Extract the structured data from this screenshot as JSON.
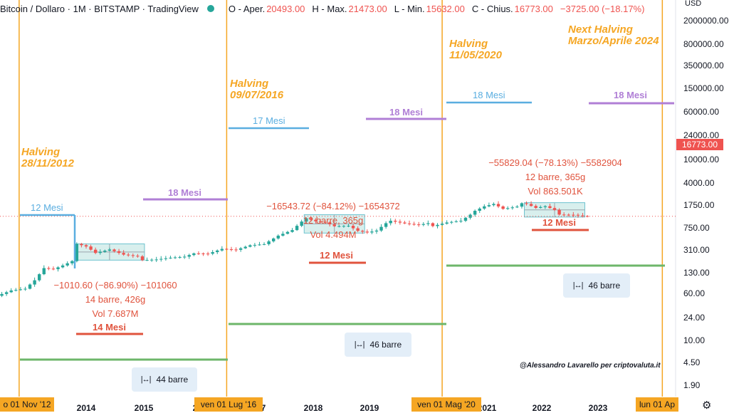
{
  "header": {
    "title": "Bitcoin / Dollaro · 1M · BITSTAMP · TradingView",
    "open_label": "O - Aper.",
    "open": "20493.00",
    "high_label": "H - Max.",
    "high": "21473.00",
    "low_label": "L - Min.",
    "low": "15632.00",
    "close_label": "C - Chius.",
    "close": "16773.00",
    "change": "−3725.00 (−18.17%)"
  },
  "axis": {
    "currency": "USD",
    "last_price": "16773.00",
    "y_ticks": [
      "2000000.00",
      "800000.00",
      "350000.00",
      "150000.00",
      "60000.00",
      "24000.00",
      "10000.00",
      "4000.00",
      "1750.00",
      "750.00",
      "310.00",
      "130.00",
      "60.00",
      "24.00",
      "10.00",
      "4.50",
      "1.90"
    ],
    "x_ticks": [
      "2014",
      "2015",
      "2",
      "7",
      "2018",
      "2019",
      "2021",
      "2022",
      "2023"
    ],
    "x_tags": [
      "o 01 Nov '12",
      "ven 01 Lug '16",
      "ven 01 Mag '20",
      "lun 01 Ap"
    ]
  },
  "annotations": {
    "halving1": [
      "Halving",
      "28/11/2012"
    ],
    "halving2": [
      "Halving",
      "09/07/2016"
    ],
    "halving3": [
      "Halving",
      "11/05/2020"
    ],
    "next_halving": [
      "Next Halving",
      "Marzo/Aprile 2024"
    ],
    "cycle1": {
      "pre": "12 Mesi",
      "post": "18 Mesi",
      "drop": "−1010.60 (−86.90%) −101060",
      "bars": "14 barre, 426g",
      "vol": "Vol 7.687M",
      "bottom": "14 Mesi",
      "span": "44 barre"
    },
    "cycle2": {
      "pre": "17 Mesi",
      "post": "18 Mesi",
      "drop": "−16543.72 (−84.12%) −1654372",
      "bars": "12 barre, 365g",
      "vol": "Vol 4.494M",
      "bottom": "12 Mesi",
      "span": "46 barre"
    },
    "cycle3": {
      "pre": "18 Mesi",
      "post": "18 Mesi",
      "drop": "−55829.04 (−78.13%) −5582904",
      "bars": "12 barre, 365g",
      "vol": "Vol 863.501K",
      "bottom": "12 Mesi",
      "span": "46 barre"
    },
    "credit": "@Alessandro Lavarello per criptovaluta.it"
  },
  "colors": {
    "up": "#26a69a",
    "down": "#ef5350",
    "halving": "#f5a623",
    "pre": "#5aaee0",
    "post": "#b07fd6",
    "bottom": "#e0533d",
    "span": "#6db66a"
  },
  "chart_data": {
    "type": "candlestick",
    "title": "Bitcoin / Dollaro · 1M · BITSTAMP",
    "y_scale": "log",
    "ylim": [
      1.9,
      2000000
    ],
    "last_close": 16773,
    "halvings": [
      "2012-11-28",
      "2016-07-09",
      "2020-05-11"
    ],
    "path": [
      [
        "2012-03",
        5
      ],
      [
        "2012-06",
        6.5
      ],
      [
        "2012-09",
        11
      ],
      [
        "2012-12",
        13
      ],
      [
        "2013-02",
        30
      ],
      [
        "2013-04",
        100
      ],
      [
        "2013-06",
        90
      ],
      [
        "2013-08",
        130
      ],
      [
        "2013-10",
        200
      ],
      [
        "2013-11",
        1100
      ],
      [
        "2014-01",
        850
      ],
      [
        "2014-03",
        450
      ],
      [
        "2014-06",
        630
      ],
      [
        "2014-09",
        380
      ],
      [
        "2014-12",
        320
      ],
      [
        "2015-01",
        220
      ],
      [
        "2015-04",
        235
      ],
      [
        "2015-07",
        280
      ],
      [
        "2015-10",
        310
      ],
      [
        "2015-12",
        430
      ],
      [
        "2016-03",
        415
      ],
      [
        "2016-06",
        670
      ],
      [
        "2016-09",
        610
      ],
      [
        "2016-12",
        960
      ],
      [
        "2017-03",
        1070
      ],
      [
        "2017-06",
        2480
      ],
      [
        "2017-09",
        4300
      ],
      [
        "2017-11",
        10000
      ],
      [
        "2017-12",
        13800
      ],
      [
        "2018-02",
        10300
      ],
      [
        "2018-04",
        9200
      ],
      [
        "2018-06",
        6300
      ],
      [
        "2018-09",
        6600
      ],
      [
        "2018-11",
        4000
      ],
      [
        "2019-01",
        3400
      ],
      [
        "2019-03",
        4100
      ],
      [
        "2019-05",
        8500
      ],
      [
        "2019-06",
        10800
      ],
      [
        "2019-09",
        8300
      ],
      [
        "2019-12",
        7200
      ],
      [
        "2020-02",
        8500
      ],
      [
        "2020-03",
        6400
      ],
      [
        "2020-06",
        9100
      ],
      [
        "2020-09",
        10800
      ],
      [
        "2020-11",
        19700
      ],
      [
        "2020-12",
        29000
      ],
      [
        "2021-02",
        45000
      ],
      [
        "2021-04",
        57000
      ],
      [
        "2021-06",
        35000
      ],
      [
        "2021-09",
        43800
      ],
      [
        "2021-10",
        61300
      ],
      [
        "2021-11",
        57000
      ],
      [
        "2022-01",
        38500
      ],
      [
        "2022-03",
        45500
      ],
      [
        "2022-05",
        31800
      ],
      [
        "2022-06",
        19900
      ],
      [
        "2022-09",
        19400
      ],
      [
        "2022-11",
        17200
      ],
      [
        "2022-12",
        16773
      ]
    ]
  }
}
